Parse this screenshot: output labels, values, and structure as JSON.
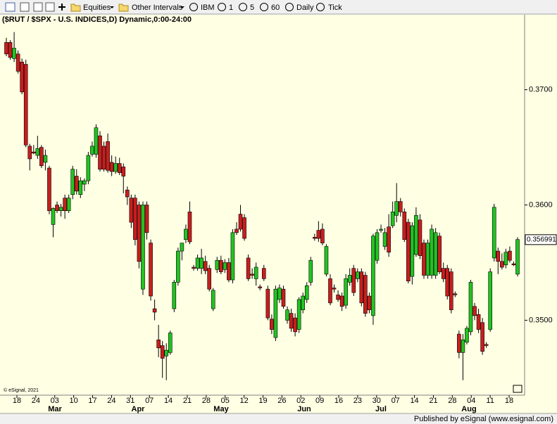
{
  "toolbar": {
    "items": [
      "Equities",
      "Other Intervals",
      "IBM",
      "1",
      "5",
      "60",
      "Daily",
      "Tick"
    ]
  },
  "chart_data": {
    "type": "candlestick",
    "title": "($RUT / $SPX - U.S. INDICES,D) Dynamic,0:00-24:00",
    "copyright": "© eSignal, 2021",
    "footer": "Published by eSignal (www.esignal.com)",
    "up_color": "#22c322",
    "down_color": "#c81e1e",
    "ylim": [
      0.3435,
      0.3765
    ],
    "yticks": [
      {
        "value": 0.35,
        "label": "0.3500"
      },
      {
        "value": 0.36,
        "label": "0.3600"
      },
      {
        "value": 0.37,
        "label": "0.3700"
      }
    ],
    "last_price": 0.356991,
    "x_tick_labels": [
      "18",
      "24",
      "03",
      "10",
      "17",
      "24",
      "31",
      "07",
      "14",
      "21",
      "28",
      "05",
      "12",
      "19",
      "26",
      "02",
      "09",
      "16",
      "23",
      "30",
      "07",
      "14",
      "21",
      "28",
      "04",
      "11",
      "18"
    ],
    "months": [
      "Mar",
      "Apr",
      "May",
      "Jun",
      "Jul",
      "Aug"
    ],
    "ohlc": [
      [
        0.3741,
        0.3745,
        0.3729,
        0.3731
      ],
      [
        0.3741,
        0.3743,
        0.3726,
        0.3728
      ],
      [
        0.3727,
        0.375,
        0.3724,
        0.3736
      ],
      [
        0.3731,
        0.3734,
        0.3714,
        0.3716
      ],
      [
        0.3724,
        0.3727,
        0.3696,
        0.3698
      ],
      [
        0.3722,
        0.3726,
        0.365,
        0.3652
      ],
      [
        0.3651,
        0.3653,
        0.363,
        0.364
      ],
      [
        0.3646,
        0.3652,
        0.3644,
        0.3645
      ],
      [
        0.3643,
        0.366,
        0.364,
        0.3649
      ],
      [
        0.365,
        0.3652,
        0.3632,
        0.3634
      ],
      [
        0.3637,
        0.3648,
        0.363,
        0.3643
      ],
      [
        0.3632,
        0.3634,
        0.3592,
        0.3595
      ],
      [
        0.3583,
        0.3598,
        0.3572,
        0.3597
      ],
      [
        0.36,
        0.3603,
        0.3593,
        0.3595
      ],
      [
        0.3595,
        0.3601,
        0.359,
        0.3598
      ],
      [
        0.3606,
        0.3609,
        0.3588,
        0.3595
      ],
      [
        0.3595,
        0.3609,
        0.3593,
        0.3606
      ],
      [
        0.3609,
        0.3634,
        0.3605,
        0.3631
      ],
      [
        0.3625,
        0.3631,
        0.3609,
        0.3612
      ],
      [
        0.3609,
        0.3624,
        0.3606,
        0.3621
      ],
      [
        0.3618,
        0.3623,
        0.3612,
        0.3621
      ],
      [
        0.3621,
        0.3646,
        0.3618,
        0.3643
      ],
      [
        0.3644,
        0.3655,
        0.3642,
        0.3651
      ],
      [
        0.3644,
        0.367,
        0.3641,
        0.3667
      ],
      [
        0.366,
        0.3664,
        0.3629,
        0.3631
      ],
      [
        0.3651,
        0.3655,
        0.3629,
        0.3631
      ],
      [
        0.3655,
        0.3662,
        0.3628,
        0.363
      ],
      [
        0.3637,
        0.3643,
        0.3625,
        0.3629
      ],
      [
        0.3629,
        0.3642,
        0.3627,
        0.3636
      ],
      [
        0.3636,
        0.3641,
        0.3626,
        0.3628
      ],
      [
        0.3633,
        0.3636,
        0.361,
        0.3625
      ],
      [
        0.3613,
        0.3616,
        0.36,
        0.3607
      ],
      [
        0.3606,
        0.3609,
        0.358,
        0.3585
      ],
      [
        0.3606,
        0.3609,
        0.3565,
        0.357
      ],
      [
        0.36,
        0.3603,
        0.3545,
        0.3551
      ],
      [
        0.3527,
        0.3603,
        0.3522,
        0.36
      ],
      [
        0.36,
        0.3603,
        0.357,
        0.3576
      ],
      [
        0.3567,
        0.357,
        0.3517,
        0.3521
      ],
      [
        0.351,
        0.3518,
        0.35,
        0.3507
      ],
      [
        0.3483,
        0.3496,
        0.3468,
        0.3476
      ],
      [
        0.3478,
        0.3482,
        0.345,
        0.3467
      ],
      [
        0.3469,
        0.348,
        0.3448,
        0.3474
      ],
      [
        0.3472,
        0.3491,
        0.347,
        0.3489
      ],
      [
        0.351,
        0.3535,
        0.3507,
        0.3533
      ],
      [
        0.3533,
        0.3563,
        0.353,
        0.356
      ],
      [
        0.356,
        0.3567,
        0.3552,
        0.3567
      ],
      [
        0.357,
        0.3583,
        0.3567,
        0.3579
      ],
      [
        0.3594,
        0.3603,
        0.3566,
        0.3568
      ],
      [
        0.3546,
        0.3548,
        0.3543,
        0.3545
      ],
      [
        0.3545,
        0.3557,
        0.3543,
        0.3554
      ],
      [
        0.3545,
        0.3562,
        0.354,
        0.3554
      ],
      [
        0.3551,
        0.3556,
        0.354,
        0.3543
      ],
      [
        0.3545,
        0.3548,
        0.3525,
        0.3527
      ],
      [
        0.351,
        0.3528,
        0.3508,
        0.3526
      ],
      [
        0.3544,
        0.3555,
        0.3541,
        0.3552
      ],
      [
        0.3552,
        0.3556,
        0.354,
        0.3542
      ],
      [
        0.3544,
        0.3553,
        0.3541,
        0.355
      ],
      [
        0.355,
        0.3554,
        0.3533,
        0.3535
      ],
      [
        0.3535,
        0.3579,
        0.3532,
        0.3576
      ],
      [
        0.3579,
        0.3585,
        0.3574,
        0.3576
      ],
      [
        0.3592,
        0.36,
        0.3577,
        0.3579
      ],
      [
        0.3589,
        0.3592,
        0.3569,
        0.3571
      ],
      [
        0.3554,
        0.3557,
        0.3534,
        0.3536
      ],
      [
        0.354,
        0.3545,
        0.3536,
        0.3539
      ],
      [
        0.3536,
        0.355,
        0.353,
        0.3546
      ],
      [
        0.3529,
        0.3531,
        0.3526,
        0.3528
      ],
      [
        0.3545,
        0.3548,
        0.3534,
        0.3536
      ],
      [
        0.3527,
        0.353,
        0.35,
        0.3502
      ],
      [
        0.3501,
        0.3505,
        0.3488,
        0.3492
      ],
      [
        0.3485,
        0.353,
        0.3482,
        0.3527
      ],
      [
        0.3518,
        0.3531,
        0.3515,
        0.3528
      ],
      [
        0.3527,
        0.353,
        0.351,
        0.3512
      ],
      [
        0.35,
        0.3512,
        0.3497,
        0.3509
      ],
      [
        0.3506,
        0.351,
        0.349,
        0.3493
      ],
      [
        0.3502,
        0.3506,
        0.3486,
        0.349
      ],
      [
        0.3492,
        0.352,
        0.3489,
        0.3518
      ],
      [
        0.3509,
        0.3524,
        0.3506,
        0.3521
      ],
      [
        0.3518,
        0.3533,
        0.3515,
        0.353
      ],
      [
        0.3533,
        0.3555,
        0.353,
        0.3552
      ],
      [
        0.3572,
        0.3575,
        0.3569,
        0.3571
      ],
      [
        0.3578,
        0.3586,
        0.3568,
        0.3571
      ],
      [
        0.3579,
        0.3584,
        0.3565,
        0.3567
      ],
      [
        0.354,
        0.3566,
        0.3538,
        0.3564
      ],
      [
        0.3536,
        0.354,
        0.3513,
        0.3515
      ],
      [
        0.3528,
        0.3531,
        0.3524,
        0.3527
      ],
      [
        0.3522,
        0.3526,
        0.3516,
        0.3518
      ],
      [
        0.3521,
        0.3524,
        0.3508,
        0.3512
      ],
      [
        0.3513,
        0.354,
        0.351,
        0.3536
      ],
      [
        0.3533,
        0.3545,
        0.353,
        0.3539
      ],
      [
        0.3545,
        0.3548,
        0.3521,
        0.3524
      ],
      [
        0.3536,
        0.3545,
        0.3533,
        0.3542
      ],
      [
        0.3542,
        0.3545,
        0.3512,
        0.3515
      ],
      [
        0.3539,
        0.3542,
        0.3503,
        0.3506
      ],
      [
        0.3521,
        0.3524,
        0.3506,
        0.3509
      ],
      [
        0.3504,
        0.3575,
        0.3496,
        0.3573
      ],
      [
        0.3552,
        0.3579,
        0.3549,
        0.3576
      ],
      [
        0.3578,
        0.3583,
        0.3576,
        0.3579
      ],
      [
        0.3564,
        0.358,
        0.3561,
        0.3576
      ],
      [
        0.3581,
        0.3592,
        0.3555,
        0.3559
      ],
      [
        0.3582,
        0.3603,
        0.358,
        0.3594
      ],
      [
        0.3591,
        0.3619,
        0.3585,
        0.3603
      ],
      [
        0.3603,
        0.3606,
        0.359,
        0.3594
      ],
      [
        0.3594,
        0.3597,
        0.3568,
        0.357
      ],
      [
        0.3585,
        0.3588,
        0.3532,
        0.3534
      ],
      [
        0.3538,
        0.3585,
        0.3531,
        0.3582
      ],
      [
        0.3557,
        0.3598,
        0.3555,
        0.3591
      ],
      [
        0.3587,
        0.3592,
        0.3553,
        0.3556
      ],
      [
        0.3567,
        0.357,
        0.3536,
        0.3539
      ],
      [
        0.3539,
        0.357,
        0.3536,
        0.3567
      ],
      [
        0.3539,
        0.3583,
        0.3536,
        0.3579
      ],
      [
        0.3539,
        0.358,
        0.3536,
        0.3576
      ],
      [
        0.3573,
        0.3576,
        0.354,
        0.3542
      ],
      [
        0.3545,
        0.355,
        0.3533,
        0.3536
      ],
      [
        0.3545,
        0.3548,
        0.3518,
        0.3521
      ],
      [
        0.3542,
        0.3545,
        0.3506,
        0.3509
      ],
      [
        0.3523,
        0.3525,
        0.352,
        0.3522
      ],
      [
        0.3488,
        0.3491,
        0.3467,
        0.3472
      ],
      [
        0.3472,
        0.3488,
        0.3448,
        0.3483
      ],
      [
        0.3481,
        0.3495,
        0.3479,
        0.3493
      ],
      [
        0.349,
        0.3535,
        0.3487,
        0.3533
      ],
      [
        0.3512,
        0.3515,
        0.35,
        0.3504
      ],
      [
        0.3505,
        0.351,
        0.3489,
        0.3492
      ],
      [
        0.3498,
        0.3502,
        0.347,
        0.3473
      ],
      [
        0.3479,
        0.3481,
        0.3476,
        0.3478
      ],
      [
        0.3492,
        0.3545,
        0.349,
        0.3542
      ],
      [
        0.3554,
        0.3601,
        0.3551,
        0.3598
      ],
      [
        0.356,
        0.3563,
        0.354,
        0.3551
      ],
      [
        0.3551,
        0.3558,
        0.3544,
        0.3546
      ],
      [
        0.3548,
        0.3562,
        0.3545,
        0.3559
      ],
      [
        0.356,
        0.3564,
        0.355,
        0.3552
      ],
      [
        0.3549,
        0.3551,
        0.3547,
        0.3548
      ],
      [
        0.354,
        0.3572,
        0.3538,
        0.357
      ]
    ]
  }
}
